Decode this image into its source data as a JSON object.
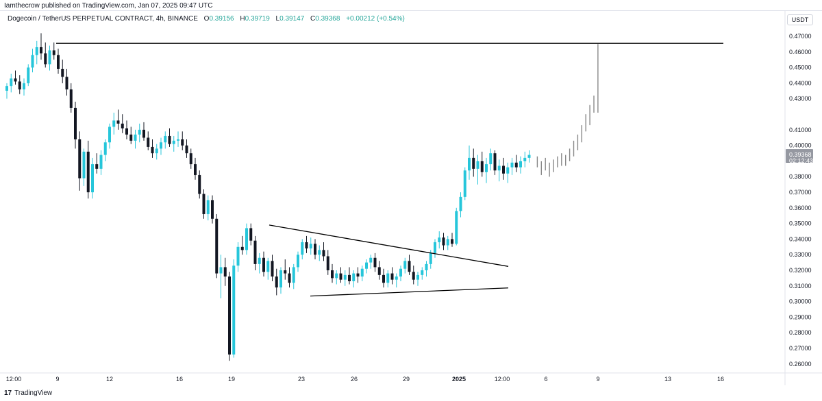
{
  "header": {
    "published_text": "Iamthecrow published on TradingView.com, Jan 07, 2025 09:47 UTC"
  },
  "symbol_info": {
    "symbol": "Dogecoin / TetherUS PERPETUAL CONTRACT, 4h, BINANCE",
    "o_label": "O",
    "o_value": "0.39156",
    "h_label": "H",
    "h_value": "0.39719",
    "l_label": "L",
    "l_value": "0.39147",
    "c_label": "C",
    "c_value": "0.39368",
    "change": "+0.00212 (+0.54%)"
  },
  "currency_button": "USDT",
  "price_label": {
    "value": "0.39368",
    "countdown": "02:12:43"
  },
  "footer": {
    "brand": "TradingView",
    "logo_text": "17"
  },
  "colors": {
    "up": "#26c6da",
    "down": "#131722",
    "projection": "#888888",
    "lines": "#000000"
  },
  "chart_data": {
    "type": "candlestick",
    "title": "Dogecoin / TetherUS PERPETUAL CONTRACT, 4h, BINANCE",
    "ylim": [
      0.255,
      0.483
    ],
    "y_ticks": [
      "0.47000",
      "0.46000",
      "0.45000",
      "0.44000",
      "0.43000",
      "0.41000",
      "0.40000",
      "0.38000",
      "0.37000",
      "0.36000",
      "0.35000",
      "0.34000",
      "0.33000",
      "0.32000",
      "0.31000",
      "0.30000",
      "0.29000",
      "0.28000",
      "0.27000",
      "0.26000"
    ],
    "x_ticks": [
      "12:00",
      "9",
      "12",
      "16",
      "19",
      "23",
      "26",
      "29",
      "2025",
      "12:00",
      "6",
      "9",
      "13",
      "16"
    ],
    "candles": [
      [
        0.435,
        0.44,
        0.43,
        0.438
      ],
      [
        0.438,
        0.446,
        0.434,
        0.443
      ],
      [
        0.443,
        0.448,
        0.439,
        0.441
      ],
      [
        0.441,
        0.445,
        0.433,
        0.436
      ],
      [
        0.436,
        0.443,
        0.432,
        0.44
      ],
      [
        0.44,
        0.452,
        0.438,
        0.45
      ],
      [
        0.45,
        0.462,
        0.447,
        0.458
      ],
      [
        0.458,
        0.467,
        0.452,
        0.463
      ],
      [
        0.463,
        0.472,
        0.455,
        0.459
      ],
      [
        0.459,
        0.466,
        0.45,
        0.452
      ],
      [
        0.452,
        0.464,
        0.448,
        0.461
      ],
      [
        0.461,
        0.466,
        0.455,
        0.458
      ],
      [
        0.458,
        0.462,
        0.446,
        0.449
      ],
      [
        0.449,
        0.455,
        0.44,
        0.444
      ],
      [
        0.444,
        0.449,
        0.432,
        0.436
      ],
      [
        0.436,
        0.44,
        0.421,
        0.424
      ],
      [
        0.424,
        0.428,
        0.398,
        0.404
      ],
      [
        0.404,
        0.409,
        0.371,
        0.379
      ],
      [
        0.379,
        0.398,
        0.374,
        0.396
      ],
      [
        0.396,
        0.403,
        0.366,
        0.37
      ],
      [
        0.37,
        0.392,
        0.366,
        0.388
      ],
      [
        0.388,
        0.395,
        0.382,
        0.385
      ],
      [
        0.385,
        0.397,
        0.381,
        0.394
      ],
      [
        0.394,
        0.404,
        0.39,
        0.402
      ],
      [
        0.402,
        0.414,
        0.398,
        0.412
      ],
      [
        0.412,
        0.421,
        0.407,
        0.416
      ],
      [
        0.416,
        0.423,
        0.41,
        0.414
      ],
      [
        0.414,
        0.42,
        0.408,
        0.411
      ],
      [
        0.411,
        0.416,
        0.404,
        0.407
      ],
      [
        0.407,
        0.412,
        0.401,
        0.403
      ],
      [
        0.403,
        0.41,
        0.398,
        0.407
      ],
      [
        0.407,
        0.414,
        0.402,
        0.41
      ],
      [
        0.41,
        0.415,
        0.403,
        0.405
      ],
      [
        0.405,
        0.409,
        0.397,
        0.399
      ],
      [
        0.399,
        0.404,
        0.392,
        0.395
      ],
      [
        0.395,
        0.401,
        0.391,
        0.398
      ],
      [
        0.398,
        0.405,
        0.394,
        0.402
      ],
      [
        0.402,
        0.409,
        0.398,
        0.406
      ],
      [
        0.406,
        0.411,
        0.399,
        0.401
      ],
      [
        0.401,
        0.406,
        0.396,
        0.403
      ],
      [
        0.403,
        0.409,
        0.399,
        0.404
      ],
      [
        0.404,
        0.409,
        0.397,
        0.4
      ],
      [
        0.4,
        0.404,
        0.392,
        0.395
      ],
      [
        0.395,
        0.398,
        0.385,
        0.388
      ],
      [
        0.388,
        0.392,
        0.378,
        0.381
      ],
      [
        0.381,
        0.384,
        0.366,
        0.369
      ],
      [
        0.369,
        0.372,
        0.353,
        0.356
      ],
      [
        0.356,
        0.368,
        0.352,
        0.365
      ],
      [
        0.365,
        0.368,
        0.35,
        0.353
      ],
      [
        0.353,
        0.356,
        0.315,
        0.318
      ],
      [
        0.318,
        0.33,
        0.302,
        0.322
      ],
      [
        0.322,
        0.328,
        0.31,
        0.316
      ],
      [
        0.316,
        0.319,
        0.262,
        0.266
      ],
      [
        0.266,
        0.327,
        0.264,
        0.323
      ],
      [
        0.323,
        0.338,
        0.319,
        0.335
      ],
      [
        0.335,
        0.342,
        0.33,
        0.333
      ],
      [
        0.333,
        0.35,
        0.33,
        0.347
      ],
      [
        0.347,
        0.35,
        0.336,
        0.339
      ],
      [
        0.339,
        0.342,
        0.32,
        0.324
      ],
      [
        0.324,
        0.331,
        0.318,
        0.328
      ],
      [
        0.328,
        0.332,
        0.316,
        0.319
      ],
      [
        0.319,
        0.328,
        0.314,
        0.326
      ],
      [
        0.326,
        0.33,
        0.313,
        0.316
      ],
      [
        0.316,
        0.321,
        0.304,
        0.309
      ],
      [
        0.309,
        0.322,
        0.305,
        0.32
      ],
      [
        0.32,
        0.327,
        0.314,
        0.318
      ],
      [
        0.318,
        0.322,
        0.309,
        0.312
      ],
      [
        0.312,
        0.324,
        0.308,
        0.322
      ],
      [
        0.322,
        0.332,
        0.319,
        0.33
      ],
      [
        0.33,
        0.34,
        0.327,
        0.338
      ],
      [
        0.338,
        0.342,
        0.331,
        0.334
      ],
      [
        0.334,
        0.341,
        0.33,
        0.337
      ],
      [
        0.337,
        0.34,
        0.327,
        0.33
      ],
      [
        0.33,
        0.336,
        0.326,
        0.333
      ],
      [
        0.333,
        0.338,
        0.326,
        0.329
      ],
      [
        0.329,
        0.333,
        0.317,
        0.32
      ],
      [
        0.32,
        0.324,
        0.312,
        0.315
      ],
      [
        0.315,
        0.32,
        0.311,
        0.318
      ],
      [
        0.318,
        0.322,
        0.312,
        0.314
      ],
      [
        0.314,
        0.32,
        0.31,
        0.317
      ],
      [
        0.317,
        0.322,
        0.311,
        0.313
      ],
      [
        0.313,
        0.32,
        0.309,
        0.318
      ],
      [
        0.318,
        0.322,
        0.312,
        0.316
      ],
      [
        0.316,
        0.323,
        0.313,
        0.321
      ],
      [
        0.321,
        0.327,
        0.318,
        0.325
      ],
      [
        0.325,
        0.33,
        0.321,
        0.328
      ],
      [
        0.328,
        0.331,
        0.319,
        0.322
      ],
      [
        0.322,
        0.326,
        0.314,
        0.317
      ],
      [
        0.317,
        0.321,
        0.309,
        0.312
      ],
      [
        0.312,
        0.32,
        0.309,
        0.318
      ],
      [
        0.318,
        0.322,
        0.311,
        0.314
      ],
      [
        0.314,
        0.318,
        0.309,
        0.316
      ],
      [
        0.316,
        0.323,
        0.313,
        0.321
      ],
      [
        0.321,
        0.328,
        0.318,
        0.326
      ],
      [
        0.326,
        0.33,
        0.317,
        0.319
      ],
      [
        0.319,
        0.323,
        0.311,
        0.314
      ],
      [
        0.314,
        0.319,
        0.31,
        0.317
      ],
      [
        0.317,
        0.322,
        0.314,
        0.32
      ],
      [
        0.32,
        0.326,
        0.316,
        0.324
      ],
      [
        0.324,
        0.333,
        0.321,
        0.331
      ],
      [
        0.331,
        0.34,
        0.328,
        0.338
      ],
      [
        0.338,
        0.345,
        0.334,
        0.341
      ],
      [
        0.341,
        0.344,
        0.333,
        0.336
      ],
      [
        0.336,
        0.342,
        0.333,
        0.34
      ],
      [
        0.34,
        0.344,
        0.335,
        0.337
      ],
      [
        0.337,
        0.36,
        0.336,
        0.358
      ],
      [
        0.358,
        0.37,
        0.354,
        0.367
      ],
      [
        0.367,
        0.386,
        0.365,
        0.384
      ],
      [
        0.384,
        0.4,
        0.378,
        0.392
      ],
      [
        0.392,
        0.398,
        0.38,
        0.385
      ],
      [
        0.385,
        0.394,
        0.375,
        0.39
      ],
      [
        0.39,
        0.396,
        0.38,
        0.383
      ],
      [
        0.383,
        0.392,
        0.376,
        0.388
      ],
      [
        0.388,
        0.398,
        0.384,
        0.395
      ],
      [
        0.395,
        0.397,
        0.381,
        0.384
      ],
      [
        0.384,
        0.391,
        0.377,
        0.387
      ],
      [
        0.387,
        0.392,
        0.378,
        0.382
      ],
      [
        0.382,
        0.389,
        0.376,
        0.386
      ],
      [
        0.386,
        0.392,
        0.381,
        0.389
      ],
      [
        0.389,
        0.394,
        0.383,
        0.386
      ],
      [
        0.386,
        0.393,
        0.382,
        0.39
      ],
      [
        0.39,
        0.396,
        0.386,
        0.392
      ],
      [
        0.392,
        0.397,
        0.389,
        0.394
      ]
    ],
    "projection_bars": [
      [
        0.393,
        0.386
      ],
      [
        0.39,
        0.381
      ],
      [
        0.392,
        0.384
      ],
      [
        0.389,
        0.38
      ],
      [
        0.391,
        0.383
      ],
      [
        0.393,
        0.386
      ],
      [
        0.395,
        0.387
      ],
      [
        0.394,
        0.387
      ],
      [
        0.398,
        0.39
      ],
      [
        0.403,
        0.393
      ],
      [
        0.407,
        0.397
      ],
      [
        0.413,
        0.402
      ],
      [
        0.42,
        0.409
      ],
      [
        0.426,
        0.413
      ],
      [
        0.432,
        0.421
      ],
      [
        0.465,
        0.421
      ]
    ],
    "horizontal_line": {
      "price": 0.4655
    },
    "triangle_upper": {
      "start": 0.349,
      "end": 0.3225
    },
    "triangle_lower": {
      "start": 0.3035,
      "end": 0.3087
    }
  }
}
